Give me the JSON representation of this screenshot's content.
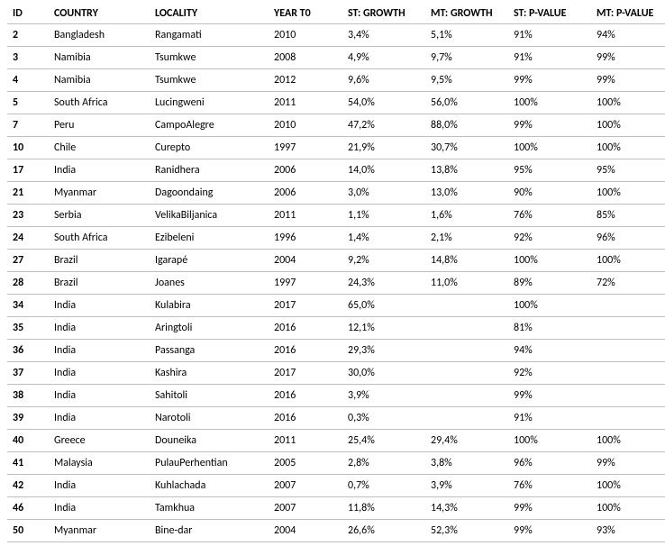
{
  "table": {
    "columns": [
      {
        "key": "id",
        "label": "ID",
        "class": "c-id"
      },
      {
        "key": "country",
        "label": "COUNTRY",
        "class": "c-cty"
      },
      {
        "key": "locality",
        "label": "LOCALITY",
        "class": "c-loc"
      },
      {
        "key": "year_t0",
        "label": "YEAR T0",
        "class": "c-yr"
      },
      {
        "key": "st_growth",
        "label": "ST: GROWTH",
        "class": "c-stg"
      },
      {
        "key": "mt_growth",
        "label": "MT: GROWTH",
        "class": "c-mtg"
      },
      {
        "key": "st_pvalue",
        "label": "ST: P-VALUE",
        "class": "c-stp"
      },
      {
        "key": "mt_pvalue",
        "label": "MT: P-VALUE",
        "class": "c-mtp"
      }
    ],
    "rows": [
      {
        "id": "2",
        "country": "Bangladesh",
        "locality": "Rangamati",
        "year_t0": "2010",
        "st_growth": "3,4%",
        "mt_growth": "5,1%",
        "st_pvalue": "91%",
        "mt_pvalue": "94%"
      },
      {
        "id": "3",
        "country": "Namibia",
        "locality": "Tsumkwe",
        "year_t0": "2008",
        "st_growth": "4,9%",
        "mt_growth": "9,7%",
        "st_pvalue": "91%",
        "mt_pvalue": "99%"
      },
      {
        "id": "4",
        "country": "Namibia",
        "locality": "Tsumkwe",
        "year_t0": "2012",
        "st_growth": "9,6%",
        "mt_growth": "9,5%",
        "st_pvalue": "99%",
        "mt_pvalue": "99%"
      },
      {
        "id": "5",
        "country": "South Africa",
        "locality": "Lucingweni",
        "year_t0": "2011",
        "st_growth": "54,0%",
        "mt_growth": "56,0%",
        "st_pvalue": "100%",
        "mt_pvalue": "100%"
      },
      {
        "id": "7",
        "country": "Peru",
        "locality": "CampoAlegre",
        "year_t0": "2010",
        "st_growth": "47,2%",
        "mt_growth": "88,0%",
        "st_pvalue": "99%",
        "mt_pvalue": "100%"
      },
      {
        "id": "10",
        "country": "Chile",
        "locality": "Curepto",
        "year_t0": "1997",
        "st_growth": "21,9%",
        "mt_growth": "30,7%",
        "st_pvalue": "100%",
        "mt_pvalue": "100%"
      },
      {
        "id": "17",
        "country": "India",
        "locality": "Ranidhera",
        "year_t0": "2006",
        "st_growth": "14,0%",
        "mt_growth": "13,8%",
        "st_pvalue": "95%",
        "mt_pvalue": "95%"
      },
      {
        "id": "21",
        "country": "Myanmar",
        "locality": "Dagoondaing",
        "year_t0": "2006",
        "st_growth": "3,0%",
        "mt_growth": "13,0%",
        "st_pvalue": "90%",
        "mt_pvalue": "100%"
      },
      {
        "id": "23",
        "country": "Serbia",
        "locality": "VelikaBiljanica",
        "year_t0": "2011",
        "st_growth": "1,1%",
        "mt_growth": "1,6%",
        "st_pvalue": "76%",
        "mt_pvalue": "85%"
      },
      {
        "id": "24",
        "country": "South Africa",
        "locality": "Ezibeleni",
        "year_t0": "1996",
        "st_growth": "1,4%",
        "mt_growth": "2,1%",
        "st_pvalue": "92%",
        "mt_pvalue": "96%"
      },
      {
        "id": "27",
        "country": "Brazil",
        "locality": "Igarapé",
        "year_t0": "2004",
        "st_growth": "9,2%",
        "mt_growth": "14,8%",
        "st_pvalue": "100%",
        "mt_pvalue": "100%"
      },
      {
        "id": "28",
        "country": "Brazil",
        "locality": "Joanes",
        "year_t0": "1997",
        "st_growth": "24,3%",
        "mt_growth": "11,0%",
        "st_pvalue": "89%",
        "mt_pvalue": "72%"
      },
      {
        "id": "34",
        "country": "India",
        "locality": "Kulabira",
        "year_t0": "2017",
        "st_growth": "65,0%",
        "mt_growth": "",
        "st_pvalue": "100%",
        "mt_pvalue": ""
      },
      {
        "id": "35",
        "country": "India",
        "locality": "Aringtoli",
        "year_t0": "2016",
        "st_growth": "12,1%",
        "mt_growth": "",
        "st_pvalue": "81%",
        "mt_pvalue": ""
      },
      {
        "id": "36",
        "country": "India",
        "locality": "Passanga",
        "year_t0": "2016",
        "st_growth": "29,3%",
        "mt_growth": "",
        "st_pvalue": "94%",
        "mt_pvalue": ""
      },
      {
        "id": "37",
        "country": "India",
        "locality": "Kashira",
        "year_t0": "2017",
        "st_growth": "30,0%",
        "mt_growth": "",
        "st_pvalue": "92%",
        "mt_pvalue": ""
      },
      {
        "id": "38",
        "country": "India",
        "locality": "Sahitoli",
        "year_t0": "2016",
        "st_growth": "3,9%",
        "mt_growth": "",
        "st_pvalue": "99%",
        "mt_pvalue": ""
      },
      {
        "id": "39",
        "country": "India",
        "locality": "Narotoli",
        "year_t0": "2016",
        "st_growth": "0,3%",
        "mt_growth": "",
        "st_pvalue": "91%",
        "mt_pvalue": ""
      },
      {
        "id": "40",
        "country": "Greece",
        "locality": "Douneika",
        "year_t0": "2011",
        "st_growth": "25,4%",
        "mt_growth": "29,4%",
        "st_pvalue": "100%",
        "mt_pvalue": "100%"
      },
      {
        "id": "41",
        "country": "Malaysia",
        "locality": "PulauPerhentian",
        "year_t0": "2005",
        "st_growth": "2,8%",
        "mt_growth": "3,8%",
        "st_pvalue": "96%",
        "mt_pvalue": "99%"
      },
      {
        "id": "42",
        "country": "India",
        "locality": "Kuhlachada",
        "year_t0": "2007",
        "st_growth": "0,7%",
        "mt_growth": "3,9%",
        "st_pvalue": "76%",
        "mt_pvalue": "100%"
      },
      {
        "id": "46",
        "country": "India",
        "locality": "Tamkhua",
        "year_t0": "2007",
        "st_growth": "11,8%",
        "mt_growth": "14,3%",
        "st_pvalue": "99%",
        "mt_pvalue": "100%"
      },
      {
        "id": "50",
        "country": "Myanmar",
        "locality": "Bine-dar",
        "year_t0": "2004",
        "st_growth": "26,6%",
        "mt_growth": "52,3%",
        "st_pvalue": "99%",
        "mt_pvalue": "93%"
      }
    ],
    "style": {
      "font_family": "Calibri, Arial, sans-serif",
      "header_fontsize": 12,
      "cell_fontsize": 12,
      "text_color": "#000000",
      "background_color": "#ffffff",
      "border_color": "#bfbfbf",
      "id_bold": true,
      "header_bold": true
    }
  }
}
